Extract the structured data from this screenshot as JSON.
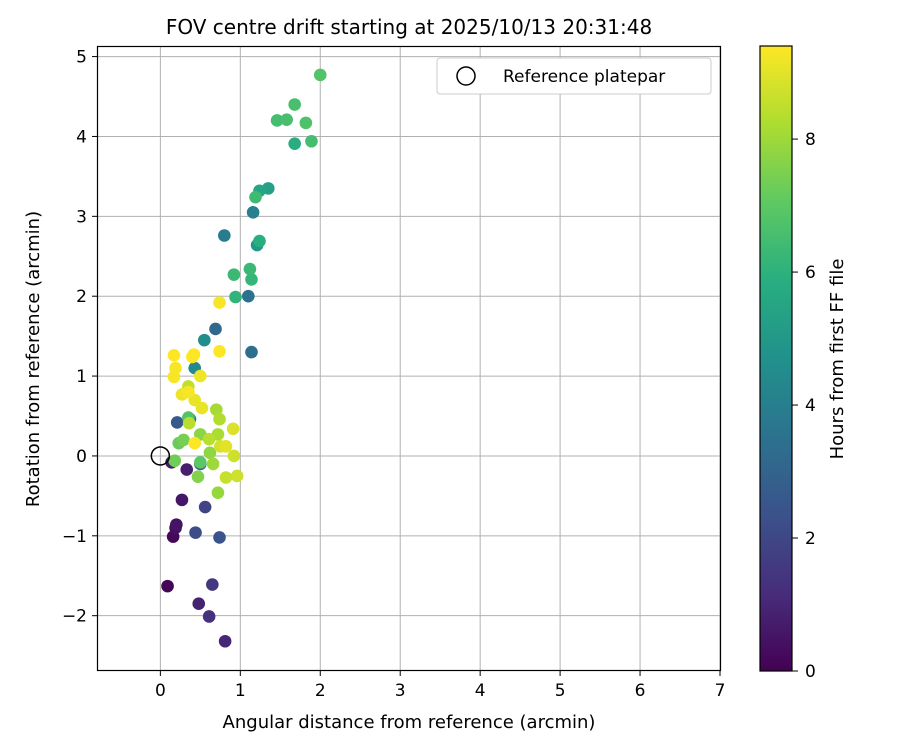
{
  "chart_data": {
    "type": "scatter",
    "title": "FOV centre drift starting at 2025/10/13 20:31:48",
    "xlabel": "Angular distance from reference (arcmin)",
    "ylabel": "Rotation from reference (arcmin)",
    "xlim": [
      -0.78,
      7.0
    ],
    "ylim": [
      -2.68,
      5.12
    ],
    "xticks": [
      0,
      1,
      2,
      3,
      4,
      5,
      6,
      7
    ],
    "yticks": [
      -2,
      -1,
      0,
      1,
      2,
      3,
      4,
      5
    ],
    "grid": true,
    "legend": {
      "position": "top-right",
      "label": "Reference platepar"
    },
    "reference_point": {
      "x": 0,
      "y": 0
    },
    "colorbar": {
      "label": "Hours from first FF file",
      "min": 0,
      "max": 9.4,
      "ticks": [
        0,
        2,
        4,
        6,
        8
      ],
      "colormap": "viridis"
    },
    "points": [
      {
        "x": 0.09,
        "y": -1.63,
        "h": 0.1
      },
      {
        "x": 0.16,
        "y": -1.01,
        "h": 0.2
      },
      {
        "x": 0.19,
        "y": -0.9,
        "h": 0.4
      },
      {
        "x": 0.2,
        "y": -0.86,
        "h": 0.5
      },
      {
        "x": 0.27,
        "y": -0.55,
        "h": 0.6
      },
      {
        "x": 0.14,
        "y": -0.08,
        "h": 0.7
      },
      {
        "x": 0.33,
        "y": -0.17,
        "h": 0.8
      },
      {
        "x": 0.48,
        "y": -1.85,
        "h": 0.9
      },
      {
        "x": 0.81,
        "y": -2.32,
        "h": 1.0
      },
      {
        "x": 0.61,
        "y": -2.01,
        "h": 1.3
      },
      {
        "x": 0.65,
        "y": -1.61,
        "h": 1.5
      },
      {
        "x": 0.56,
        "y": -0.64,
        "h": 1.9
      },
      {
        "x": 0.44,
        "y": -0.96,
        "h": 2.2
      },
      {
        "x": 0.74,
        "y": -1.02,
        "h": 2.4
      },
      {
        "x": 0.21,
        "y": 0.42,
        "h": 2.6
      },
      {
        "x": 0.5,
        "y": -0.1,
        "h": 3.0
      },
      {
        "x": 0.69,
        "y": 1.59,
        "h": 3.2
      },
      {
        "x": 1.14,
        "y": 1.3,
        "h": 3.4
      },
      {
        "x": 1.1,
        "y": 2.0,
        "h": 3.5
      },
      {
        "x": 0.8,
        "y": 2.76,
        "h": 3.9
      },
      {
        "x": 1.16,
        "y": 3.05,
        "h": 4.0
      },
      {
        "x": 0.43,
        "y": 1.1,
        "h": 4.4
      },
      {
        "x": 0.55,
        "y": 1.45,
        "h": 4.6
      },
      {
        "x": 1.21,
        "y": 2.64,
        "h": 4.9
      },
      {
        "x": 1.35,
        "y": 3.35,
        "h": 5.3
      },
      {
        "x": 1.24,
        "y": 3.32,
        "h": 5.5
      },
      {
        "x": 1.68,
        "y": 3.91,
        "h": 5.8
      },
      {
        "x": 1.24,
        "y": 2.69,
        "h": 5.9
      },
      {
        "x": 0.94,
        "y": 1.99,
        "h": 6.1
      },
      {
        "x": 1.14,
        "y": 2.21,
        "h": 6.2
      },
      {
        "x": 1.12,
        "y": 2.34,
        "h": 6.3
      },
      {
        "x": 0.92,
        "y": 2.27,
        "h": 6.3
      },
      {
        "x": 1.19,
        "y": 3.24,
        "h": 6.4
      },
      {
        "x": 1.89,
        "y": 3.94,
        "h": 6.5
      },
      {
        "x": 1.46,
        "y": 4.2,
        "h": 6.5
      },
      {
        "x": 1.58,
        "y": 4.21,
        "h": 6.6
      },
      {
        "x": 1.68,
        "y": 4.4,
        "h": 6.6
      },
      {
        "x": 1.82,
        "y": 4.17,
        "h": 6.7
      },
      {
        "x": 2.0,
        "y": 4.77,
        "h": 6.8
      },
      {
        "x": 0.37,
        "y": 0.46,
        "h": 3.8
      },
      {
        "x": 0.35,
        "y": 0.48,
        "h": 6.8
      },
      {
        "x": 0.5,
        "y": -0.08,
        "h": 7.0
      },
      {
        "x": 0.23,
        "y": 0.16,
        "h": 7.2
      },
      {
        "x": 0.18,
        "y": -0.06,
        "h": 7.3
      },
      {
        "x": 0.29,
        "y": 0.2,
        "h": 7.4
      },
      {
        "x": 0.47,
        "y": -0.26,
        "h": 7.6
      },
      {
        "x": 0.5,
        "y": 0.27,
        "h": 7.7
      },
      {
        "x": 0.62,
        "y": 0.04,
        "h": 7.8
      },
      {
        "x": 0.72,
        "y": -0.46,
        "h": 7.9
      },
      {
        "x": 0.66,
        "y": -0.1,
        "h": 8.0
      },
      {
        "x": 0.7,
        "y": 0.58,
        "h": 8.1
      },
      {
        "x": 0.72,
        "y": 0.27,
        "h": 8.2
      },
      {
        "x": 0.74,
        "y": 0.46,
        "h": 8.3
      },
      {
        "x": 0.61,
        "y": 0.21,
        "h": 8.4
      },
      {
        "x": 0.36,
        "y": 0.41,
        "h": 8.4
      },
      {
        "x": 0.35,
        "y": 0.87,
        "h": 8.5
      },
      {
        "x": 0.82,
        "y": -0.27,
        "h": 8.6
      },
      {
        "x": 0.96,
        "y": -0.25,
        "h": 8.7
      },
      {
        "x": 0.92,
        "y": 0.0,
        "h": 8.7
      },
      {
        "x": 0.75,
        "y": 0.12,
        "h": 8.8
      },
      {
        "x": 0.91,
        "y": 0.34,
        "h": 8.9
      },
      {
        "x": 0.82,
        "y": 0.12,
        "h": 9.0
      },
      {
        "x": 0.43,
        "y": 0.7,
        "h": 9.1
      },
      {
        "x": 0.52,
        "y": 0.6,
        "h": 9.1
      },
      {
        "x": 0.5,
        "y": 1.0,
        "h": 9.2
      },
      {
        "x": 0.27,
        "y": 0.77,
        "h": 9.2
      },
      {
        "x": 0.35,
        "y": 0.8,
        "h": 9.3
      },
      {
        "x": 0.17,
        "y": 0.99,
        "h": 9.3
      },
      {
        "x": 0.19,
        "y": 1.1,
        "h": 9.3
      },
      {
        "x": 0.17,
        "y": 1.26,
        "h": 9.4
      },
      {
        "x": 0.4,
        "y": 1.24,
        "h": 9.4
      },
      {
        "x": 0.42,
        "y": 1.27,
        "h": 9.4
      },
      {
        "x": 0.74,
        "y": 1.31,
        "h": 9.4
      },
      {
        "x": 0.74,
        "y": 1.92,
        "h": 9.3
      },
      {
        "x": 0.43,
        "y": 0.16,
        "h": 9.4
      }
    ]
  }
}
